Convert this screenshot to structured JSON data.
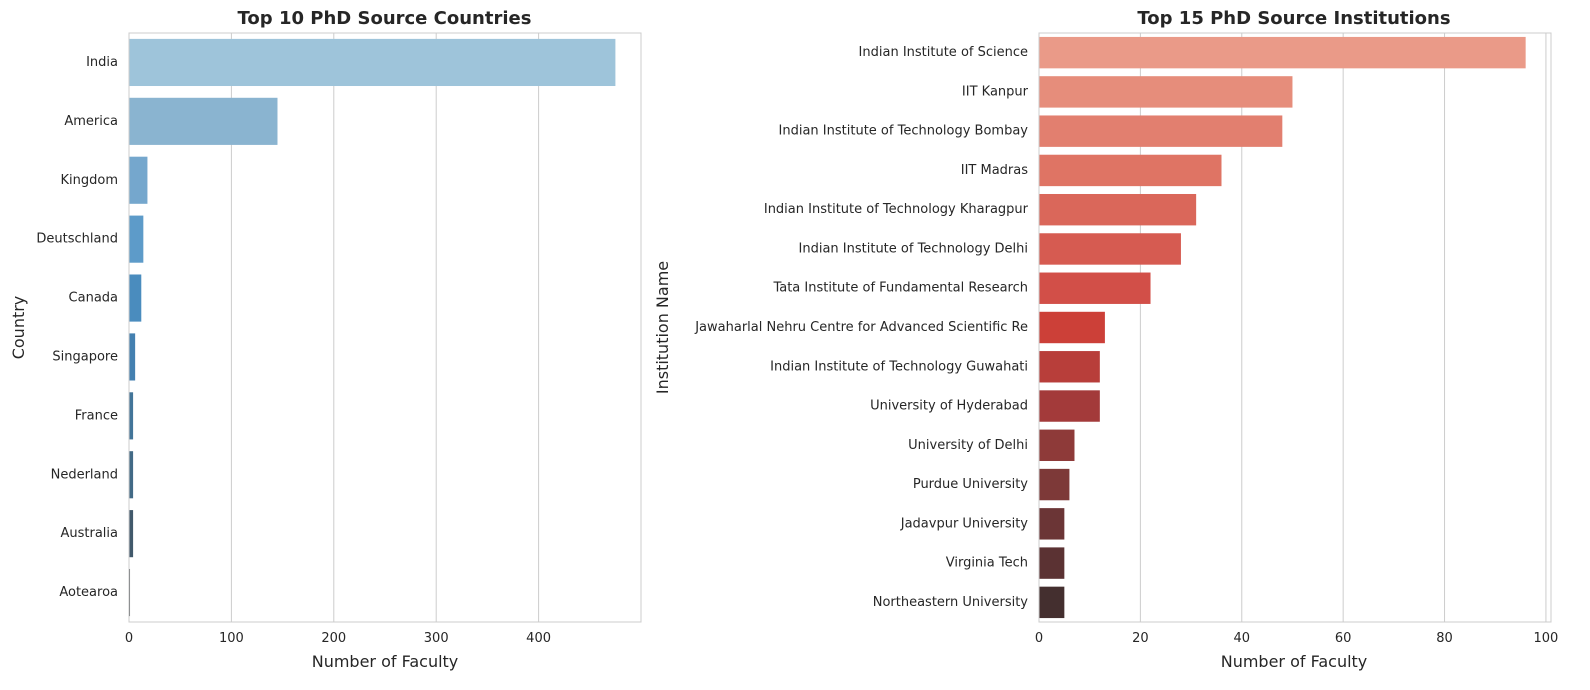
{
  "chart_data": [
    {
      "type": "bar",
      "orientation": "horizontal",
      "title": "Top 10 PhD Source Countries",
      "xlabel": "Number of Faculty",
      "ylabel": "Country",
      "xlim": [
        0,
        500
      ],
      "xticks": [
        "0",
        "100",
        "200",
        "300",
        "400"
      ],
      "xtick_values": [
        0,
        100,
        200,
        300,
        400
      ],
      "grid": true,
      "categories": [
        "India",
        "America",
        "Kingdom",
        "Deutschland",
        "Canada",
        "Singapore",
        "France",
        "Nederland",
        "Australia",
        "Aotearoa"
      ],
      "values": [
        475,
        145,
        18,
        14,
        12,
        6,
        4,
        4,
        4,
        1
      ],
      "colors": [
        "#9ec4da",
        "#8ab4d0",
        "#75a7cd",
        "#5d9bc9",
        "#4a8cbe",
        "#4480b0",
        "#437599",
        "#426a86",
        "#41596b",
        "#4f5459"
      ]
    },
    {
      "type": "bar",
      "orientation": "horizontal",
      "title": "Top 15 PhD Source Institutions",
      "xlabel": "Number of Faculty",
      "ylabel": "Institution Name",
      "xlim": [
        0,
        101
      ],
      "xticks": [
        "0",
        "20",
        "40",
        "60",
        "80",
        "100"
      ],
      "xtick_values": [
        0,
        20,
        40,
        60,
        80,
        100
      ],
      "grid": true,
      "categories": [
        "Indian Institute of Science",
        "IIT Kanpur",
        "Indian Institute of Technology Bombay",
        "IIT Madras",
        "Indian Institute of Technology Kharagpur",
        "Indian Institute of Technology Delhi",
        "Tata Institute of Fundamental Research",
        "Jawaharlal Nehru Centre for Advanced Scientific Re",
        "Indian Institute of Technology Guwahati",
        "University of Hyderabad",
        "University of Delhi",
        "Purdue University",
        "Jadavpur University",
        "Virginia Tech",
        "Northeastern University"
      ],
      "values": [
        96,
        50,
        48,
        36,
        31,
        28,
        22,
        13,
        12,
        12,
        7,
        6,
        5,
        5,
        5
      ],
      "colors": [
        "#ea9a88",
        "#e68d7b",
        "#e27f6f",
        "#df7464",
        "#da675a",
        "#d65b51",
        "#d24f48",
        "#cc4038",
        "#b83e3a",
        "#a33a3a",
        "#8e3a39",
        "#7d3938",
        "#6b3536",
        "#5b3233",
        "#442f2f"
      ]
    }
  ]
}
